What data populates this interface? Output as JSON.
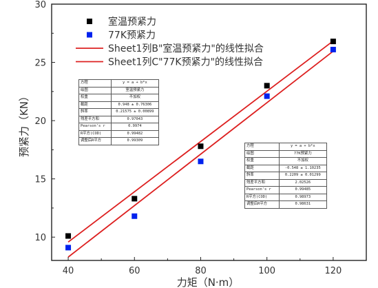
{
  "chart_data": {
    "type": "scatter",
    "title": "",
    "xlabel": "力矩（N·m）",
    "ylabel": "预紧力（KN）",
    "xlim": [
      35,
      130
    ],
    "ylim": [
      8,
      30
    ],
    "xticks": [
      40,
      60,
      80,
      100,
      120
    ],
    "yticks": [
      10,
      15,
      20,
      25,
      30
    ],
    "grid": false,
    "legend_position": "top-left",
    "series": [
      {
        "name": "室温预紧力",
        "kind": "points",
        "marker": "square",
        "color": "#000000",
        "x": [
          40,
          60,
          80,
          100,
          120
        ],
        "y": [
          10.1,
          13.3,
          17.8,
          23.0,
          26.8
        ]
      },
      {
        "name": "77K预紧力",
        "kind": "points",
        "marker": "square",
        "color": "#0022ee",
        "x": [
          40,
          60,
          80,
          100,
          120
        ],
        "y": [
          9.1,
          11.8,
          16.5,
          22.1,
          26.1
        ]
      },
      {
        "name": "Sheet1列B\"室温预紧力\"的线性拟合",
        "kind": "fit",
        "color": "#dd2020",
        "intercept": 0.948,
        "slope": 0.21575,
        "x_range": [
          40,
          120
        ]
      },
      {
        "name": "Sheet1列C\"77K预紧力\"的线性拟合",
        "kind": "fit",
        "color": "#dd2020",
        "intercept": -0.548,
        "slope": 0.2209,
        "x_range": [
          40,
          120
        ]
      }
    ]
  },
  "fit_tables": [
    {
      "rows": [
        [
          "方程",
          "y = a + b*x"
        ],
        [
          "绘图",
          "室温预紧力"
        ],
        [
          "权重",
          "不加权"
        ],
        [
          "截距",
          "0.948 ± 0.76306"
        ],
        [
          "斜率",
          "0.21575 ± 0.00899"
        ],
        [
          "残差平方和",
          "0.97043"
        ],
        [
          "Pearson's r",
          "0.9974"
        ],
        [
          "R平方(COD)",
          "0.99482"
        ],
        [
          "调整后R平方",
          "0.99309"
        ]
      ]
    },
    {
      "rows": [
        [
          "方程",
          "y = a + b*x"
        ],
        [
          "绘图",
          "77K预紧力"
        ],
        [
          "权重",
          "不加权"
        ],
        [
          "截距",
          "-0.548 ± 1.10235"
        ],
        [
          "斜率",
          "0.2209 ± 0.01299"
        ],
        [
          "残差平方和",
          "2.02526"
        ],
        [
          "Pearson's r",
          "0.99485"
        ],
        [
          "R平方(COD)",
          "0.98973"
        ],
        [
          "调整后R平方",
          "0.98631"
        ]
      ]
    }
  ]
}
